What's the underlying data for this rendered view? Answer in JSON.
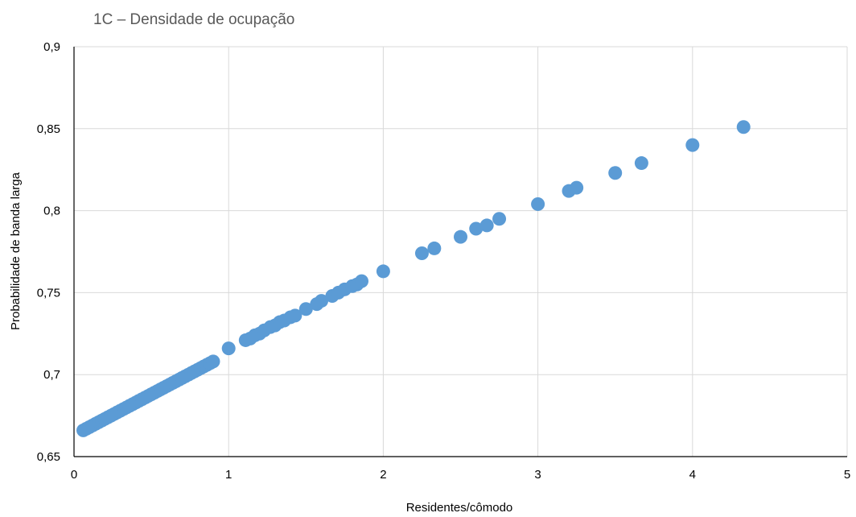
{
  "chart_data": {
    "type": "scatter",
    "title": "1C – Densidade de ocupação",
    "xlabel": "Residentes/cômodo",
    "ylabel": "Probabilidade de banda larga",
    "xlim": [
      0,
      5
    ],
    "ylim": [
      0.65,
      0.9
    ],
    "x_ticks": [
      0,
      1,
      2,
      3,
      4,
      5
    ],
    "x_tick_labels": [
      "0",
      "1",
      "2",
      "3",
      "4",
      "5"
    ],
    "y_ticks": [
      0.65,
      0.7,
      0.75,
      0.8,
      0.85,
      0.9
    ],
    "y_tick_labels": [
      "0,65",
      "0,7",
      "0,75",
      "0,8",
      "0,85",
      "0,9"
    ],
    "grid": true,
    "marker_color": "#5B9BD5",
    "grid_color": "#D9D9D9",
    "axis_color": "#000000",
    "title_color": "#595959",
    "series": [
      {
        "x": [
          0.06,
          0.08,
          0.1,
          0.12,
          0.14,
          0.16,
          0.18,
          0.2,
          0.22,
          0.24,
          0.26,
          0.28,
          0.3,
          0.32,
          0.34,
          0.36,
          0.38,
          0.4,
          0.42,
          0.44,
          0.46,
          0.48,
          0.5,
          0.52,
          0.54,
          0.56,
          0.58,
          0.6,
          0.62,
          0.64,
          0.66,
          0.68,
          0.7,
          0.72,
          0.74,
          0.76,
          0.78,
          0.8,
          0.82,
          0.84,
          0.86,
          0.88,
          0.9,
          1.0,
          1.11,
          1.14,
          1.17,
          1.2,
          1.23,
          1.27,
          1.3,
          1.33,
          1.36,
          1.4,
          1.43,
          1.5,
          1.57,
          1.6,
          1.67,
          1.71,
          1.75,
          1.8,
          1.83,
          1.86,
          2.0,
          2.25,
          2.33,
          2.5,
          2.6,
          2.67,
          2.75,
          3.0,
          3.2,
          3.25,
          3.5,
          3.67,
          4.0,
          4.33
        ],
        "y": [
          0.666,
          0.667,
          0.668,
          0.669,
          0.67,
          0.671,
          0.672,
          0.673,
          0.674,
          0.675,
          0.676,
          0.677,
          0.678,
          0.679,
          0.68,
          0.681,
          0.682,
          0.683,
          0.684,
          0.685,
          0.686,
          0.687,
          0.688,
          0.689,
          0.69,
          0.691,
          0.692,
          0.693,
          0.694,
          0.695,
          0.696,
          0.697,
          0.698,
          0.699,
          0.7,
          0.701,
          0.702,
          0.703,
          0.704,
          0.705,
          0.706,
          0.707,
          0.708,
          0.716,
          0.721,
          0.722,
          0.724,
          0.725,
          0.727,
          0.729,
          0.73,
          0.732,
          0.733,
          0.735,
          0.736,
          0.74,
          0.743,
          0.745,
          0.748,
          0.75,
          0.752,
          0.754,
          0.755,
          0.757,
          0.763,
          0.774,
          0.777,
          0.784,
          0.789,
          0.791,
          0.795,
          0.804,
          0.812,
          0.814,
          0.823,
          0.829,
          0.84,
          0.851
        ]
      }
    ]
  }
}
